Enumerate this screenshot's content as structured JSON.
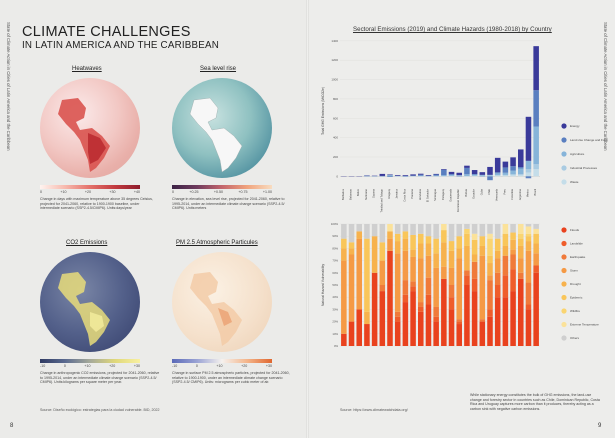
{
  "left_page": {
    "side_text": "State of Climate Action in Cities of Latin America and the Caribbean",
    "title_line1": "CLIMATE CHALLENGES",
    "title_line2": "IN LATIN AMERICA AND THE CARIBBEAN",
    "maps": [
      {
        "title": "Heatwaves",
        "ticks": [
          "0",
          "+10",
          "+20",
          "+30",
          "+40"
        ],
        "caption": "Change in days with maximum temperature above 35 degrees Celsius, projected for 2041-2060, relative to 1900-1900 baseline, under intermediate scenario (SSP2-4.5/CMIP6). Units:days/year"
      },
      {
        "title": "Sea level rise",
        "ticks": [
          "0",
          "+0.25",
          "+0.50",
          "+0.75",
          "+1.00"
        ],
        "caption": "Change in elevation, sea level rise, projected for 2041-2060, relative to 1995-2014, under an intermediate climate change scenario (SSP2-4.5/ CMIP6). Units:meters"
      },
      {
        "title": "CO2 Emissions",
        "ticks": [
          "-10",
          "0",
          "+10",
          "+20",
          "+30"
        ],
        "caption": "Change in anthropogenic CO2 emissions, projected for 2041-2060, relative to 1995-2014, under an intermediate climate change scenario (SSP2-4.5/ CMIP6). Units:kilograms per square meter per year."
      },
      {
        "title": "PM 2.5 Atmospheric Particules",
        "ticks": [
          "-10",
          "0",
          "+10",
          "+20",
          "+30"
        ],
        "caption": "Change in surface PM 2.5 atmospheric particles, projected for 2041-2060, relative to 1900-1900, under an intermediate climate change scenario (SSP2-4.5/ CMIP6). Units: micrograms per cubic meter of air."
      }
    ],
    "source": "Source: Diseño ecológico: estrategias para la ciudad vulnerable. BID, 2022",
    "page_number": "8"
  },
  "right_page": {
    "side_text": "State of Climate Action in Cities of Latin America and the Caribbean",
    "page_number": "9",
    "source": "Source: https://www.climatewatchdata.org/",
    "note": "While stationary energy constitutes the bulk of GHG emissions, the land-use change and forestry sector in countries such as Chile, Dominican Republic, Costa Rica and Uruguay captures more carbon than it produces, thereby acting as a carbon sink with negative carbon emissions."
  },
  "colors": {
    "waste": "#c4dde9",
    "industrial": "#a9cbe2",
    "agriculture": "#86b4d9",
    "landuse": "#5a7fc0",
    "energy": "#3a3a9a",
    "floods": "#e9421e",
    "landslide": "#ef5d2b",
    "earthquake": "#f07a3a",
    "storm": "#f59a45",
    "drought": "#f7b24d",
    "epidemic": "#f9c65a",
    "wildfire": "#fad571",
    "extreme_temp": "#fbe29a",
    "others": "#cfcfcf"
  },
  "chart_data": {
    "type": "bar",
    "title": "Sectoral Emissions (2019) and Climate Hazards (1980-2018) by Country",
    "categories": [
      "Barbados",
      "Bahamas",
      "Belize",
      "Suriname",
      "Guyana",
      "Trinidad and Tobago",
      "Uruguay",
      "Jamaica",
      "Costa Rica",
      "Panama",
      "Honduras",
      "El Salvador",
      "Nicaragua",
      "Paraguay",
      "Guatemala",
      "Dominican Republic",
      "Bolivia",
      "Ecuador",
      "Cuba",
      "Chile",
      "Venezuela",
      "Peru",
      "Colombia",
      "Argentina",
      "Mexico",
      "Brazil"
    ],
    "top": {
      "ylabel": "Total GHG Emissions (MtCO2e)",
      "yticks": [
        "0",
        "200",
        "400",
        "600",
        "800",
        "1000",
        "1200",
        "1400"
      ],
      "ylim": [
        -100,
        1450
      ],
      "series": [
        {
          "name": "Waste",
          "values": [
            0,
            0,
            0,
            0,
            0,
            1,
            1,
            2,
            1,
            2,
            2,
            2,
            1,
            2,
            4,
            3,
            3,
            5,
            4,
            5,
            8,
            10,
            14,
            15,
            40,
            75
          ]
        },
        {
          "name": "Industrial Processes",
          "values": [
            0,
            0,
            0,
            0,
            0,
            1,
            0,
            1,
            1,
            1,
            1,
            1,
            0,
            1,
            2,
            3,
            1,
            3,
            2,
            3,
            5,
            5,
            8,
            6,
            35,
            50
          ]
        },
        {
          "name": "Agriculture",
          "values": [
            0,
            0,
            0,
            1,
            1,
            1,
            12,
            2,
            2,
            3,
            5,
            2,
            6,
            10,
            9,
            6,
            18,
            10,
            9,
            7,
            18,
            22,
            38,
            60,
            85,
            390
          ]
        },
        {
          "name": "Land-Use Change and Forestry",
          "values": [
            0,
            0,
            0,
            6,
            3,
            1,
            -7,
            0,
            -4,
            2,
            9,
            1,
            12,
            55,
            9,
            -2,
            65,
            6,
            -1,
            -40,
            12,
            55,
            45,
            15,
            -20,
            375
          ]
        },
        {
          "name": "Energy",
          "values": [
            2,
            2,
            1,
            3,
            3,
            21,
            6,
            8,
            8,
            12,
            10,
            7,
            6,
            7,
            22,
            25,
            23,
            41,
            28,
            82,
            148,
            60,
            91,
            182,
            455,
            455
          ]
        }
      ]
    },
    "bottom": {
      "ylabel": "Natural Hazard Vulnerability",
      "yticks": [
        "0%",
        "10%",
        "20%",
        "30%",
        "40%",
        "50%",
        "60%",
        "70%",
        "80%",
        "90%",
        "100%"
      ],
      "ylim": [
        0,
        100
      ],
      "series": [
        {
          "name": "Floods",
          "values": [
            10,
            20,
            30,
            18,
            60,
            45,
            78,
            20,
            36,
            45,
            28,
            34,
            20,
            55,
            30,
            18,
            50,
            45,
            20,
            24,
            40,
            40,
            45,
            55,
            30,
            60
          ]
        },
        {
          "name": "Landslide",
          "values": [
            0,
            0,
            0,
            0,
            0,
            0,
            0,
            4,
            6,
            4,
            4,
            8,
            4,
            0,
            10,
            2,
            8,
            10,
            0,
            6,
            10,
            18,
            18,
            0,
            4,
            6
          ]
        },
        {
          "name": "Earthquake",
          "values": [
            0,
            0,
            0,
            0,
            0,
            5,
            0,
            4,
            12,
            4,
            4,
            14,
            8,
            0,
            10,
            2,
            4,
            14,
            2,
            24,
            10,
            16,
            12,
            5,
            18,
            0
          ]
        },
        {
          "name": "Storm",
          "values": [
            60,
            55,
            58,
            0,
            0,
            20,
            10,
            48,
            24,
            20,
            36,
            18,
            32,
            10,
            14,
            50,
            0,
            0,
            52,
            4,
            12,
            0,
            4,
            12,
            26,
            10
          ]
        },
        {
          "name": "Drought",
          "values": [
            10,
            5,
            6,
            10,
            30,
            0,
            6,
            10,
            10,
            6,
            12,
            10,
            12,
            20,
            14,
            8,
            20,
            6,
            8,
            10,
            6,
            8,
            8,
            10,
            8,
            8
          ]
        },
        {
          "name": "Epidemic",
          "values": [
            8,
            5,
            0,
            60,
            0,
            15,
            0,
            6,
            6,
            12,
            8,
            6,
            12,
            10,
            8,
            10,
            10,
            12,
            8,
            6,
            10,
            10,
            6,
            6,
            4,
            8
          ]
        },
        {
          "name": "Wildfire",
          "values": [
            0,
            0,
            0,
            0,
            0,
            0,
            0,
            0,
            0,
            0,
            0,
            0,
            0,
            0,
            0,
            0,
            4,
            0,
            0,
            14,
            0,
            0,
            0,
            4,
            2,
            0
          ]
        },
        {
          "name": "Extreme Temperature",
          "values": [
            0,
            0,
            0,
            0,
            0,
            0,
            6,
            0,
            0,
            0,
            0,
            0,
            0,
            5,
            0,
            0,
            0,
            5,
            0,
            4,
            0,
            8,
            0,
            8,
            6,
            4
          ]
        },
        {
          "name": "Others",
          "values": [
            12,
            15,
            6,
            12,
            10,
            15,
            0,
            8,
            6,
            9,
            8,
            10,
            12,
            0,
            14,
            10,
            4,
            8,
            10,
            8,
            12,
            0,
            7,
            0,
            2,
            4
          ]
        }
      ]
    }
  }
}
